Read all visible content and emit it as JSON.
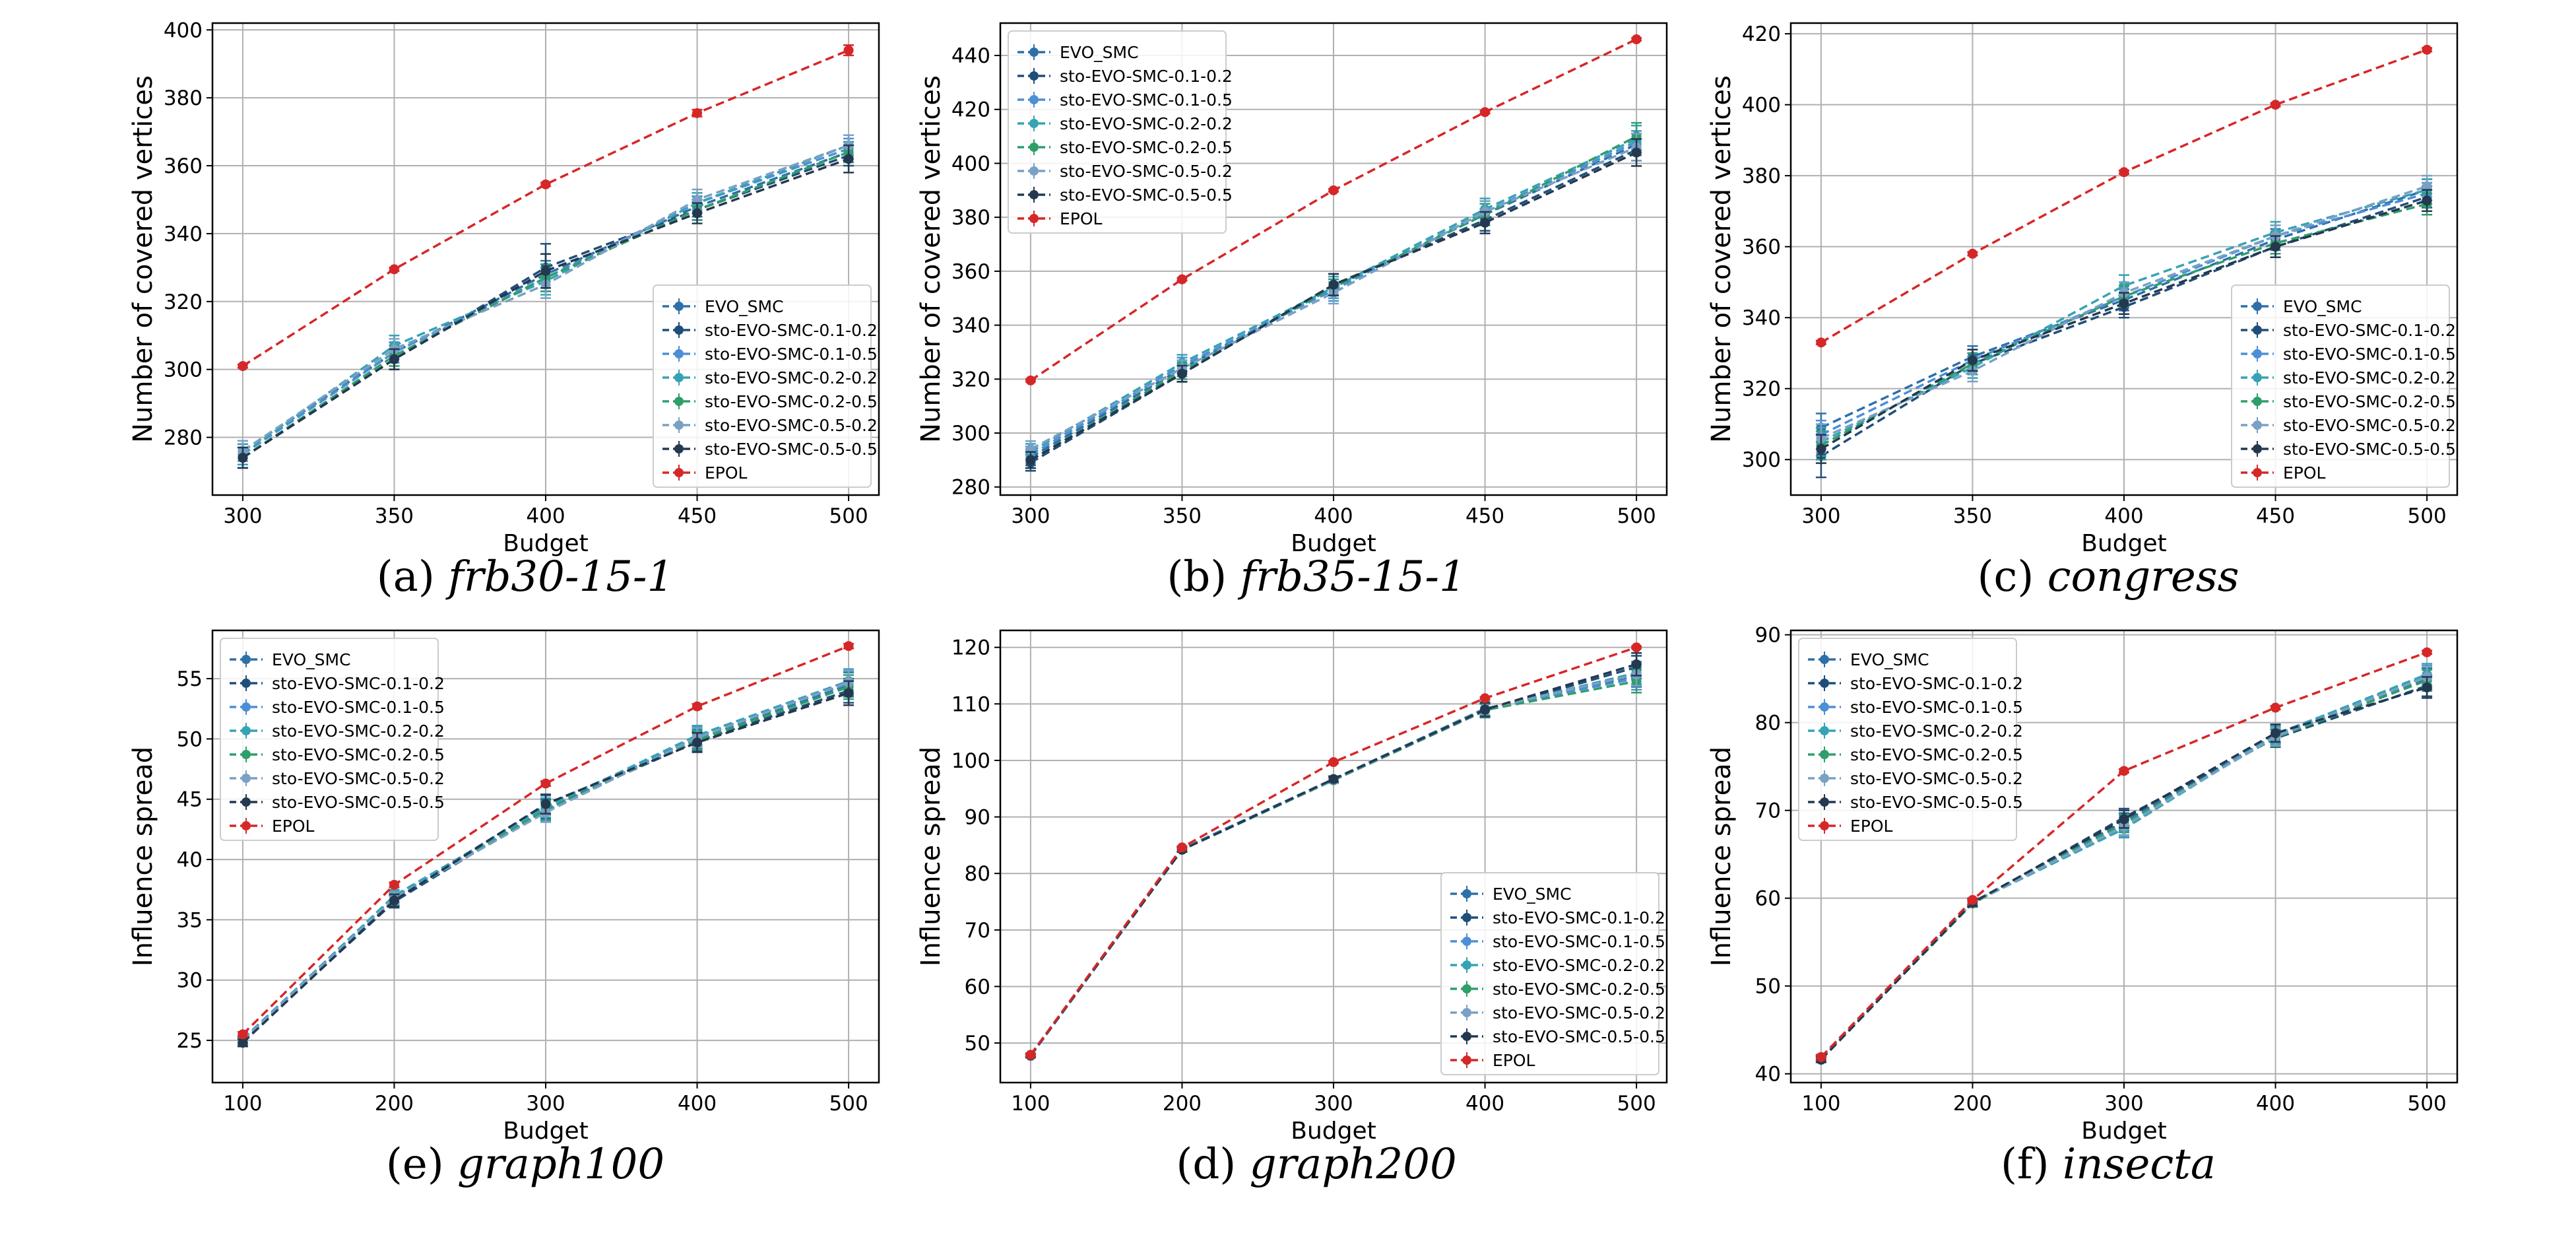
{
  "figure": {
    "title": ""
  },
  "series_meta": [
    {
      "name": "EVO_SMC",
      "color": "#2e6fa8",
      "marker": "circle"
    },
    {
      "name": "sto-EVO-SMC-0.1-0.2",
      "color": "#1f4e79",
      "marker": "circle"
    },
    {
      "name": "sto-EVO-SMC-0.1-0.5",
      "color": "#4c8fd6",
      "marker": "circle"
    },
    {
      "name": "sto-EVO-SMC-0.2-0.2",
      "color": "#35a3b4",
      "marker": "circle"
    },
    {
      "name": "sto-EVO-SMC-0.2-0.5",
      "color": "#2e9e6b",
      "marker": "circle"
    },
    {
      "name": "sto-EVO-SMC-0.5-0.2",
      "color": "#7aa0c4",
      "marker": "circle"
    },
    {
      "name": "sto-EVO-SMC-0.5-0.5",
      "color": "#24384f",
      "marker": "circle"
    },
    {
      "name": "EPOL",
      "color": "#d62728",
      "marker": "circle"
    }
  ],
  "chart_data": [
    {
      "id": "a",
      "type": "line",
      "caption_prefix": "(a) ",
      "caption_name": "frb30-15-1",
      "xlabel": "Budget",
      "ylabel": "Number of covered vertices",
      "x": [
        300,
        350,
        400,
        450,
        500
      ],
      "xlim": [
        290,
        510
      ],
      "ylim": [
        263,
        402
      ],
      "xticks": [
        300,
        350,
        400,
        450,
        500
      ],
      "yticks": [
        280,
        300,
        320,
        340,
        360,
        380,
        400
      ],
      "legend_position": "lower-right",
      "series": [
        {
          "name": "EVO_SMC",
          "values": [
            276,
            305,
            328,
            348,
            364
          ],
          "err": [
            3,
            3,
            4,
            3,
            3
          ]
        },
        {
          "name": "sto-EVO-SMC-0.1-0.2",
          "values": [
            274,
            303,
            330,
            347,
            363
          ],
          "err": [
            3,
            3,
            7,
            3,
            3
          ]
        },
        {
          "name": "sto-EVO-SMC-0.1-0.5",
          "values": [
            275,
            305,
            327,
            349,
            365
          ],
          "err": [
            3,
            3,
            4,
            3,
            3
          ]
        },
        {
          "name": "sto-EVO-SMC-0.2-0.2",
          "values": [
            275,
            307,
            326,
            349,
            366
          ],
          "err": [
            3,
            3,
            4,
            3,
            3
          ]
        },
        {
          "name": "sto-EVO-SMC-0.2-0.5",
          "values": [
            274,
            304,
            327,
            347,
            364
          ],
          "err": [
            3,
            3,
            4,
            3,
            3
          ]
        },
        {
          "name": "sto-EVO-SMC-0.5-0.2",
          "values": [
            276,
            306,
            325,
            350,
            366
          ],
          "err": [
            3,
            3,
            4,
            3,
            3
          ]
        },
        {
          "name": "sto-EVO-SMC-0.5-0.5",
          "values": [
            274,
            303,
            329,
            346,
            362
          ],
          "err": [
            3,
            3,
            5,
            3,
            4
          ]
        },
        {
          "name": "EPOL",
          "values": [
            301,
            329.5,
            354.5,
            375.5,
            394
          ],
          "err": [
            0.5,
            0.5,
            0.5,
            1,
            1.5
          ]
        }
      ]
    },
    {
      "id": "b",
      "type": "line",
      "caption_prefix": "(b) ",
      "caption_name": "frb35-15-1",
      "xlabel": "Budget",
      "ylabel": "Number of covered vertices",
      "x": [
        300,
        350,
        400,
        450,
        500
      ],
      "xlim": [
        290,
        510
      ],
      "ylim": [
        277,
        452
      ],
      "xticks": [
        300,
        350,
        400,
        450,
        500
      ],
      "yticks": [
        280,
        300,
        320,
        340,
        360,
        380,
        400,
        420,
        440
      ],
      "legend_position": "top-left",
      "series": [
        {
          "name": "EVO_SMC",
          "values": [
            291,
            324,
            354,
            381,
            407
          ],
          "err": [
            3,
            3,
            3,
            4,
            4
          ]
        },
        {
          "name": "sto-EVO-SMC-0.1-0.2",
          "values": [
            289,
            322,
            355,
            379,
            405
          ],
          "err": [
            3,
            3,
            4,
            4,
            4
          ]
        },
        {
          "name": "sto-EVO-SMC-0.1-0.5",
          "values": [
            292,
            325,
            353,
            382,
            408
          ],
          "err": [
            3,
            3,
            4,
            4,
            4
          ]
        },
        {
          "name": "sto-EVO-SMC-0.2-0.2",
          "values": [
            293,
            326,
            354,
            383,
            409
          ],
          "err": [
            3,
            3,
            4,
            4,
            5
          ]
        },
        {
          "name": "sto-EVO-SMC-0.2-0.5",
          "values": [
            290,
            323,
            354,
            381,
            410
          ],
          "err": [
            3,
            3,
            3,
            4,
            5
          ]
        },
        {
          "name": "sto-EVO-SMC-0.5-0.2",
          "values": [
            294,
            324,
            352,
            382,
            406
          ],
          "err": [
            3,
            3,
            4,
            4,
            5
          ]
        },
        {
          "name": "sto-EVO-SMC-0.5-0.5",
          "values": [
            290,
            322,
            355,
            378,
            404
          ],
          "err": [
            3,
            3,
            4,
            4,
            5
          ]
        },
        {
          "name": "EPOL",
          "values": [
            319.5,
            357,
            390,
            419,
            446
          ],
          "err": [
            0.5,
            0.5,
            0.5,
            0.5,
            0.5
          ]
        }
      ]
    },
    {
      "id": "c",
      "type": "line",
      "caption_prefix": "(c) ",
      "caption_name": "congress",
      "xlabel": "Budget",
      "ylabel": "Number of covered vertices",
      "x": [
        300,
        350,
        400,
        450,
        500
      ],
      "xlim": [
        290,
        510
      ],
      "ylim": [
        290,
        423
      ],
      "xticks": [
        300,
        350,
        400,
        450,
        500
      ],
      "yticks": [
        300,
        320,
        340,
        360,
        380,
        400,
        420
      ],
      "legend_position": "lower-right",
      "series": [
        {
          "name": "EVO_SMC",
          "values": [
            309,
            329,
            345,
            362,
            376
          ],
          "err": [
            4,
            3,
            3,
            3,
            3
          ]
        },
        {
          "name": "sto-EVO-SMC-0.1-0.2",
          "values": [
            301,
            327,
            343,
            360,
            374
          ],
          "err": [
            6,
            3,
            3,
            3,
            3
          ]
        },
        {
          "name": "sto-EVO-SMC-0.1-0.5",
          "values": [
            307,
            328,
            346,
            363,
            375
          ],
          "err": [
            4,
            3,
            3,
            3,
            3
          ]
        },
        {
          "name": "sto-EVO-SMC-0.2-0.2",
          "values": [
            305,
            326,
            349,
            364,
            376
          ],
          "err": [
            4,
            3,
            3,
            3,
            3
          ]
        },
        {
          "name": "sto-EVO-SMC-0.2-0.5",
          "values": [
            304,
            327,
            346,
            361,
            372
          ],
          "err": [
            4,
            3,
            3,
            3,
            3
          ]
        },
        {
          "name": "sto-EVO-SMC-0.5-0.2",
          "values": [
            306,
            325,
            347,
            363,
            377
          ],
          "err": [
            4,
            3,
            3,
            3,
            3
          ]
        },
        {
          "name": "sto-EVO-SMC-0.5-0.5",
          "values": [
            303,
            328,
            344,
            360,
            373
          ],
          "err": [
            4,
            3,
            3,
            3,
            3
          ]
        },
        {
          "name": "EPOL",
          "values": [
            333,
            358,
            381,
            400,
            415.5
          ],
          "err": [
            0.5,
            0.5,
            0.5,
            0.5,
            0.5
          ]
        }
      ]
    },
    {
      "id": "e",
      "type": "line",
      "caption_prefix": "(e) ",
      "caption_name": "graph100",
      "xlabel": "Budget",
      "ylabel": "Influence spread",
      "x": [
        100,
        200,
        300,
        400,
        500
      ],
      "xlim": [
        80,
        520
      ],
      "ylim": [
        21.5,
        59
      ],
      "xticks": [
        100,
        200,
        300,
        400,
        500
      ],
      "yticks": [
        25,
        30,
        35,
        40,
        45,
        50,
        55
      ],
      "legend_position": "top-left",
      "series": [
        {
          "name": "EVO_SMC",
          "values": [
            25.0,
            36.8,
            44.5,
            50.0,
            54.5
          ],
          "err": [
            0.3,
            0.5,
            0.8,
            0.8,
            1.0
          ]
        },
        {
          "name": "sto-EVO-SMC-0.1-0.2",
          "values": [
            24.9,
            36.5,
            44.2,
            49.8,
            54.0
          ],
          "err": [
            0.3,
            0.5,
            0.8,
            0.8,
            1.0
          ]
        },
        {
          "name": "sto-EVO-SMC-0.1-0.5",
          "values": [
            25.1,
            36.9,
            44.0,
            50.2,
            54.6
          ],
          "err": [
            0.3,
            0.5,
            0.8,
            0.8,
            1.0
          ]
        },
        {
          "name": "sto-EVO-SMC-0.2-0.2",
          "values": [
            25.0,
            37.0,
            44.3,
            50.3,
            54.8
          ],
          "err": [
            0.3,
            0.5,
            0.8,
            0.8,
            1.0
          ]
        },
        {
          "name": "sto-EVO-SMC-0.2-0.5",
          "values": [
            24.9,
            36.7,
            44.1,
            49.9,
            54.3
          ],
          "err": [
            0.3,
            0.5,
            0.8,
            0.8,
            1.0
          ]
        },
        {
          "name": "sto-EVO-SMC-0.5-0.2",
          "values": [
            25.0,
            36.8,
            43.9,
            50.1,
            54.7
          ],
          "err": [
            0.3,
            0.5,
            0.8,
            0.8,
            1.0
          ]
        },
        {
          "name": "sto-EVO-SMC-0.5-0.5",
          "values": [
            24.8,
            36.6,
            44.6,
            49.7,
            53.8
          ],
          "err": [
            0.3,
            0.5,
            0.8,
            0.8,
            1.0
          ]
        },
        {
          "name": "EPOL",
          "values": [
            25.5,
            37.9,
            46.3,
            52.7,
            57.7
          ],
          "err": [
            0.2,
            0.2,
            0.2,
            0.2,
            0.2
          ]
        }
      ]
    },
    {
      "id": "d",
      "type": "line",
      "caption_prefix": "(d) ",
      "caption_name": "graph200",
      "xlabel": "Budget",
      "ylabel": "Influence spread",
      "x": [
        100,
        200,
        300,
        400,
        500
      ],
      "xlim": [
        80,
        520
      ],
      "ylim": [
        43,
        123
      ],
      "xticks": [
        100,
        200,
        300,
        400,
        500
      ],
      "yticks": [
        50,
        60,
        70,
        80,
        90,
        100,
        110,
        120
      ],
      "legend_position": "lower-right",
      "series": [
        {
          "name": "EVO_SMC",
          "values": [
            47.8,
            84.3,
            96.6,
            109.0,
            115.0
          ],
          "err": [
            0.3,
            0.4,
            0.5,
            1.2,
            2.0
          ]
        },
        {
          "name": "sto-EVO-SMC-0.1-0.2",
          "values": [
            47.7,
            84.2,
            96.5,
            108.8,
            116.5
          ],
          "err": [
            0.3,
            0.4,
            0.5,
            1.2,
            2.0
          ]
        },
        {
          "name": "sto-EVO-SMC-0.1-0.5",
          "values": [
            47.8,
            84.4,
            96.7,
            109.2,
            114.5
          ],
          "err": [
            0.3,
            0.4,
            0.5,
            1.2,
            2.0
          ]
        },
        {
          "name": "sto-EVO-SMC-0.2-0.2",
          "values": [
            47.9,
            84.3,
            96.6,
            109.0,
            115.5
          ],
          "err": [
            0.3,
            0.4,
            0.5,
            1.2,
            2.0
          ]
        },
        {
          "name": "sto-EVO-SMC-0.2-0.5",
          "values": [
            47.8,
            84.2,
            96.5,
            108.9,
            114.0
          ],
          "err": [
            0.3,
            0.4,
            0.5,
            1.2,
            2.0
          ]
        },
        {
          "name": "sto-EVO-SMC-0.5-0.2",
          "values": [
            47.7,
            84.3,
            96.6,
            109.1,
            115.2
          ],
          "err": [
            0.3,
            0.4,
            0.5,
            1.2,
            2.0
          ]
        },
        {
          "name": "sto-EVO-SMC-0.5-0.5",
          "values": [
            47.8,
            84.2,
            96.7,
            109.0,
            117.0
          ],
          "err": [
            0.3,
            0.4,
            0.5,
            1.2,
            2.0
          ]
        },
        {
          "name": "EPOL",
          "values": [
            47.9,
            84.6,
            99.7,
            111.0,
            120.0
          ],
          "err": [
            0.2,
            0.2,
            0.2,
            0.2,
            0.2
          ]
        }
      ]
    },
    {
      "id": "f",
      "type": "line",
      "caption_prefix": "(f) ",
      "caption_name": "insecta",
      "xlabel": "Budget",
      "ylabel": "Influence spread",
      "x": [
        100,
        200,
        300,
        400,
        500
      ],
      "xlim": [
        80,
        520
      ],
      "ylim": [
        39,
        90.5
      ],
      "xticks": [
        100,
        200,
        300,
        400,
        500
      ],
      "yticks": [
        40,
        50,
        60,
        70,
        80,
        90
      ],
      "legend_position": "top-left",
      "series": [
        {
          "name": "EVO_SMC",
          "values": [
            41.8,
            59.5,
            68.7,
            78.5,
            85.0
          ],
          "err": [
            0.3,
            0.4,
            1.0,
            1.0,
            1.2
          ]
        },
        {
          "name": "sto-EVO-SMC-0.1-0.2",
          "values": [
            41.7,
            59.4,
            69.2,
            78.2,
            84.2
          ],
          "err": [
            0.3,
            0.4,
            1.0,
            1.0,
            1.2
          ]
        },
        {
          "name": "sto-EVO-SMC-0.1-0.5",
          "values": [
            41.8,
            59.6,
            68.0,
            78.7,
            85.3
          ],
          "err": [
            0.3,
            0.4,
            1.0,
            1.0,
            1.2
          ]
        },
        {
          "name": "sto-EVO-SMC-0.2-0.2",
          "values": [
            41.9,
            59.5,
            67.9,
            78.6,
            85.5
          ],
          "err": [
            0.3,
            0.4,
            1.0,
            1.0,
            1.2
          ]
        },
        {
          "name": "sto-EVO-SMC-0.2-0.5",
          "values": [
            41.7,
            59.4,
            68.5,
            78.3,
            84.8
          ],
          "err": [
            0.3,
            0.4,
            1.0,
            1.0,
            1.2
          ]
        },
        {
          "name": "sto-EVO-SMC-0.5-0.2",
          "values": [
            41.8,
            59.5,
            68.2,
            78.4,
            85.2
          ],
          "err": [
            0.3,
            0.4,
            1.0,
            1.0,
            1.2
          ]
        },
        {
          "name": "sto-EVO-SMC-0.5-0.5",
          "values": [
            41.6,
            59.5,
            69.0,
            78.8,
            84.0
          ],
          "err": [
            0.3,
            0.4,
            1.0,
            1.0,
            1.2
          ]
        },
        {
          "name": "EPOL",
          "values": [
            41.9,
            59.8,
            74.5,
            81.7,
            88.0
          ],
          "err": [
            0.2,
            0.2,
            0.2,
            0.2,
            0.2
          ]
        }
      ]
    }
  ]
}
